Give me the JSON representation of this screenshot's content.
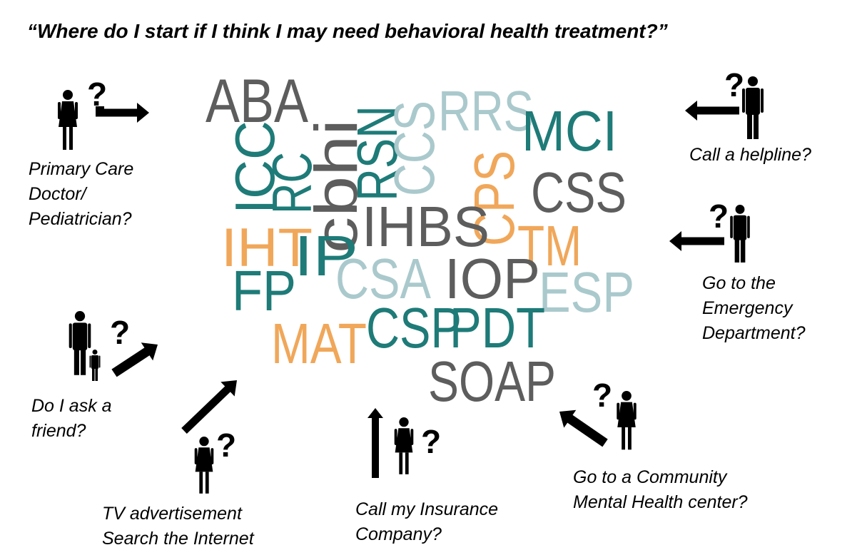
{
  "title": "“Where do I start if I think I may need behavioral health treatment?”",
  "colors": {
    "teal": "#1e7b78",
    "gray": "#5d5d5d",
    "light": "#aac9cc",
    "orange": "#f0a75a",
    "ink": "#000000"
  },
  "acronyms": [
    {
      "text": "ABA",
      "color": "gray"
    },
    {
      "text": "RSN",
      "color": "teal"
    },
    {
      "text": "CCS",
      "color": "light"
    },
    {
      "text": "RRS",
      "color": "light"
    },
    {
      "text": "MCI",
      "color": "teal"
    },
    {
      "text": "ICC",
      "color": "teal"
    },
    {
      "text": "RC",
      "color": "teal"
    },
    {
      "text": "cbhi",
      "color": "gray"
    },
    {
      "text": "CPS",
      "color": "orange"
    },
    {
      "text": "CSS",
      "color": "gray"
    },
    {
      "text": "IHBS",
      "color": "gray"
    },
    {
      "text": "IHT",
      "color": "orange"
    },
    {
      "text": "IP",
      "color": "teal"
    },
    {
      "text": "TM",
      "color": "orange"
    },
    {
      "text": "FP",
      "color": "teal"
    },
    {
      "text": "CSA",
      "color": "light"
    },
    {
      "text": "IOP",
      "color": "gray"
    },
    {
      "text": "ESP",
      "color": "light"
    },
    {
      "text": "MAT",
      "color": "orange"
    },
    {
      "text": "CSP",
      "color": "teal"
    },
    {
      "text": "PDT",
      "color": "teal"
    },
    {
      "text": "SOAP",
      "color": "gray"
    }
  ],
  "options": [
    {
      "id": "primary-care",
      "label": "Primary Care\nDoctor/\nPediatrician?",
      "icon": "woman-icon"
    },
    {
      "id": "helpline",
      "label": "Call a helpline?",
      "icon": "man-icon"
    },
    {
      "id": "emergency",
      "label": "Go to the\nEmergency\nDepartment?",
      "icon": "man-icon"
    },
    {
      "id": "friend",
      "label": "Do I ask a\nfriend?",
      "icon": "parent-child-icon"
    },
    {
      "id": "tv-internet",
      "label": "TV advertisement\nSearch the Internet",
      "icon": "woman-icon"
    },
    {
      "id": "insurance",
      "label": "Call my Insurance\nCompany?",
      "icon": "woman-icon"
    },
    {
      "id": "community",
      "label": "Go to a Community\nMental Health center?",
      "icon": "woman-icon"
    }
  ],
  "question_mark": "?"
}
